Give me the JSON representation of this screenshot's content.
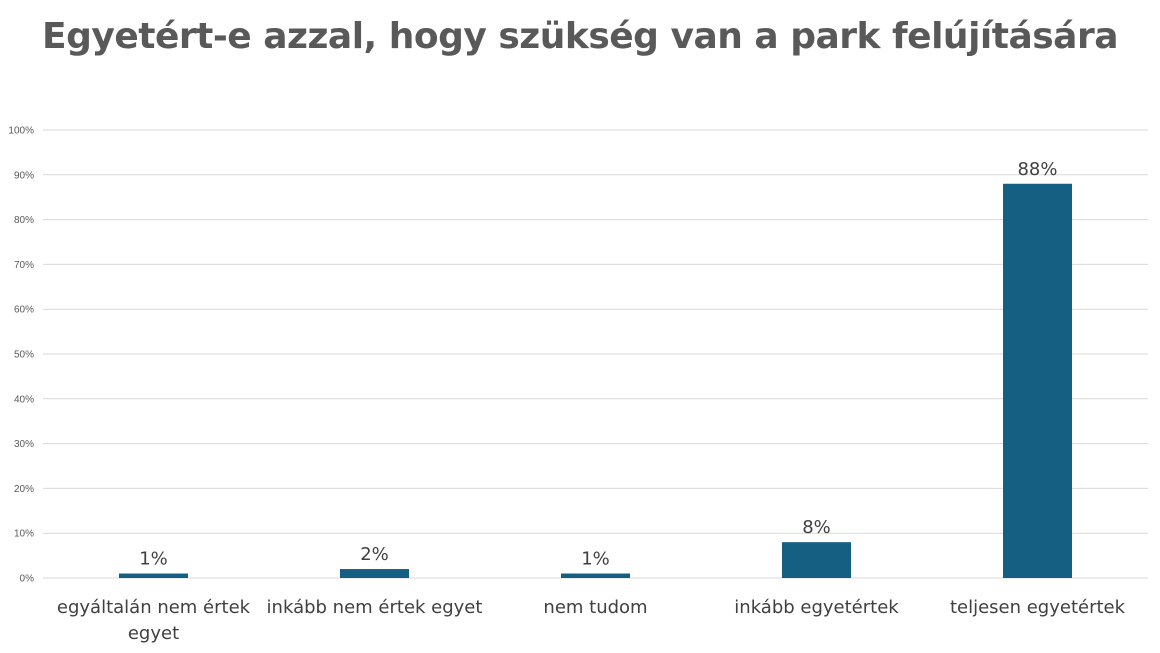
{
  "chart_data": {
    "type": "bar",
    "title": "Egyetért-e azzal, hogy szükség van a park felújítására",
    "categories": [
      [
        "egyáltalán nem értek",
        "egyet"
      ],
      [
        "inkább nem értek egyet"
      ],
      [
        "nem tudom"
      ],
      [
        "inkább egyetértek"
      ],
      [
        "teljesen egyetértek"
      ]
    ],
    "values": [
      1,
      2,
      1,
      8,
      88
    ],
    "data_labels": [
      "1%",
      "2%",
      "1%",
      "8%",
      "88%"
    ],
    "y_ticks": [
      "0%",
      "10%",
      "20%",
      "30%",
      "40%",
      "50%",
      "60%",
      "70%",
      "80%",
      "90%",
      "100%"
    ],
    "ylim": [
      0,
      100
    ],
    "grid": true,
    "legend": "none",
    "colors": {
      "bar": "#156082",
      "grid": "#d9d9d9",
      "title": "#595959",
      "text": "#404040"
    }
  }
}
